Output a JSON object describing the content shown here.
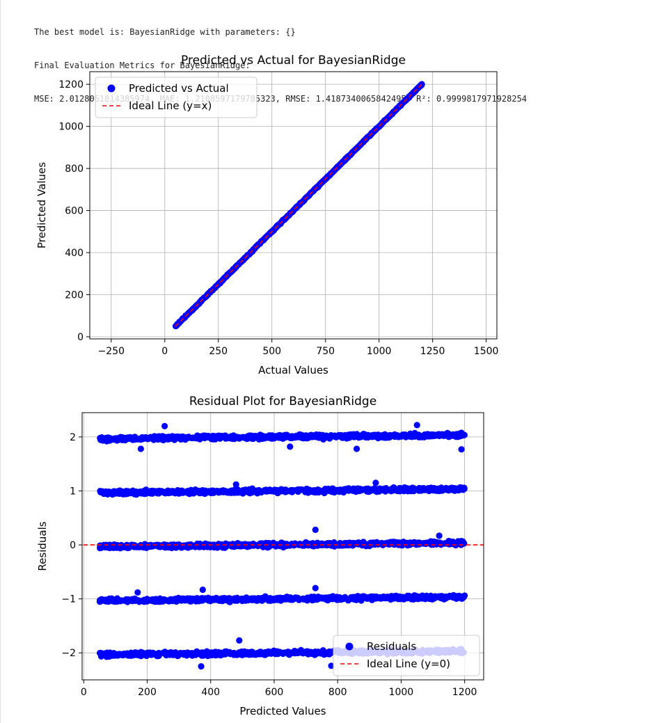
{
  "output": {
    "best_model_line": "The best model is: BayesianRidge with parameters: {}",
    "metrics_header": "Final Evaluation Metrics for BayesianRidge:",
    "metrics_line": "MSE: 2.0128061814385974, MAE: 1.2108597179785323, RMSE: 1.4187340065842495, R²: 0.9999817971928254"
  },
  "colors": {
    "points": "#0000ff",
    "ideal_line": "#ff0000",
    "grid": "#b0b0b0"
  },
  "chart_data": [
    {
      "type": "scatter",
      "title": "Predicted vs Actual for BayesianRidge",
      "xlabel": "Actual Values",
      "ylabel": "Predicted Values",
      "xlim": [
        -350,
        1550
      ],
      "ylim": [
        -10,
        1260
      ],
      "xticks": [
        -250,
        0,
        250,
        500,
        750,
        1000,
        1250,
        1500
      ],
      "xtick_labels": [
        "−250",
        "0",
        "250",
        "500",
        "750",
        "1000",
        "1250",
        "1500"
      ],
      "yticks": [
        0,
        200,
        400,
        600,
        800,
        1000,
        1200
      ],
      "ytick_labels": [
        "0",
        "200",
        "400",
        "600",
        "800",
        "1000",
        "1200"
      ],
      "grid": true,
      "legend_position": "top-left",
      "series": [
        {
          "name": "Predicted vs Actual",
          "kind": "points",
          "x_range": [
            50,
            1200
          ],
          "relation": "y = x"
        },
        {
          "name": "Ideal Line (y=x)",
          "kind": "dashed-line",
          "x": [
            50,
            1200
          ],
          "y": [
            50,
            1200
          ]
        }
      ]
    },
    {
      "type": "scatter",
      "title": "Residual Plot for BayesianRidge",
      "xlabel": "Predicted Values",
      "ylabel": "Residuals",
      "xlim": [
        -5,
        1260
      ],
      "ylim": [
        -2.5,
        2.45
      ],
      "xticks": [
        0,
        200,
        400,
        600,
        800,
        1000,
        1200
      ],
      "xtick_labels": [
        "0",
        "200",
        "400",
        "600",
        "800",
        "1000",
        "1200"
      ],
      "yticks": [
        -2,
        -1,
        0,
        1,
        2
      ],
      "ytick_labels": [
        "−2",
        "−1",
        "0",
        "1",
        "2"
      ],
      "grid": true,
      "legend_position": "bottom-right",
      "series": [
        {
          "name": "Residuals",
          "kind": "points",
          "x_range": [
            50,
            1200
          ],
          "bands": [
            -2,
            -1,
            0,
            1,
            2
          ]
        },
        {
          "name": "Ideal Line (y=0)",
          "kind": "dashed-line",
          "y": 0
        }
      ],
      "outliers": [
        [
          255,
          2.2
        ],
        [
          1050,
          2.22
        ],
        [
          730,
          0.28
        ],
        [
          375,
          -0.83
        ],
        [
          730,
          -0.8
        ],
        [
          490,
          -1.77
        ],
        [
          1190,
          1.77
        ],
        [
          370,
          -2.25
        ],
        [
          780,
          -2.24
        ],
        [
          860,
          1.78
        ],
        [
          650,
          1.82
        ],
        [
          180,
          1.78
        ],
        [
          480,
          1.12
        ],
        [
          920,
          1.15
        ],
        [
          1120,
          0.17
        ],
        [
          170,
          -0.88
        ]
      ]
    }
  ]
}
